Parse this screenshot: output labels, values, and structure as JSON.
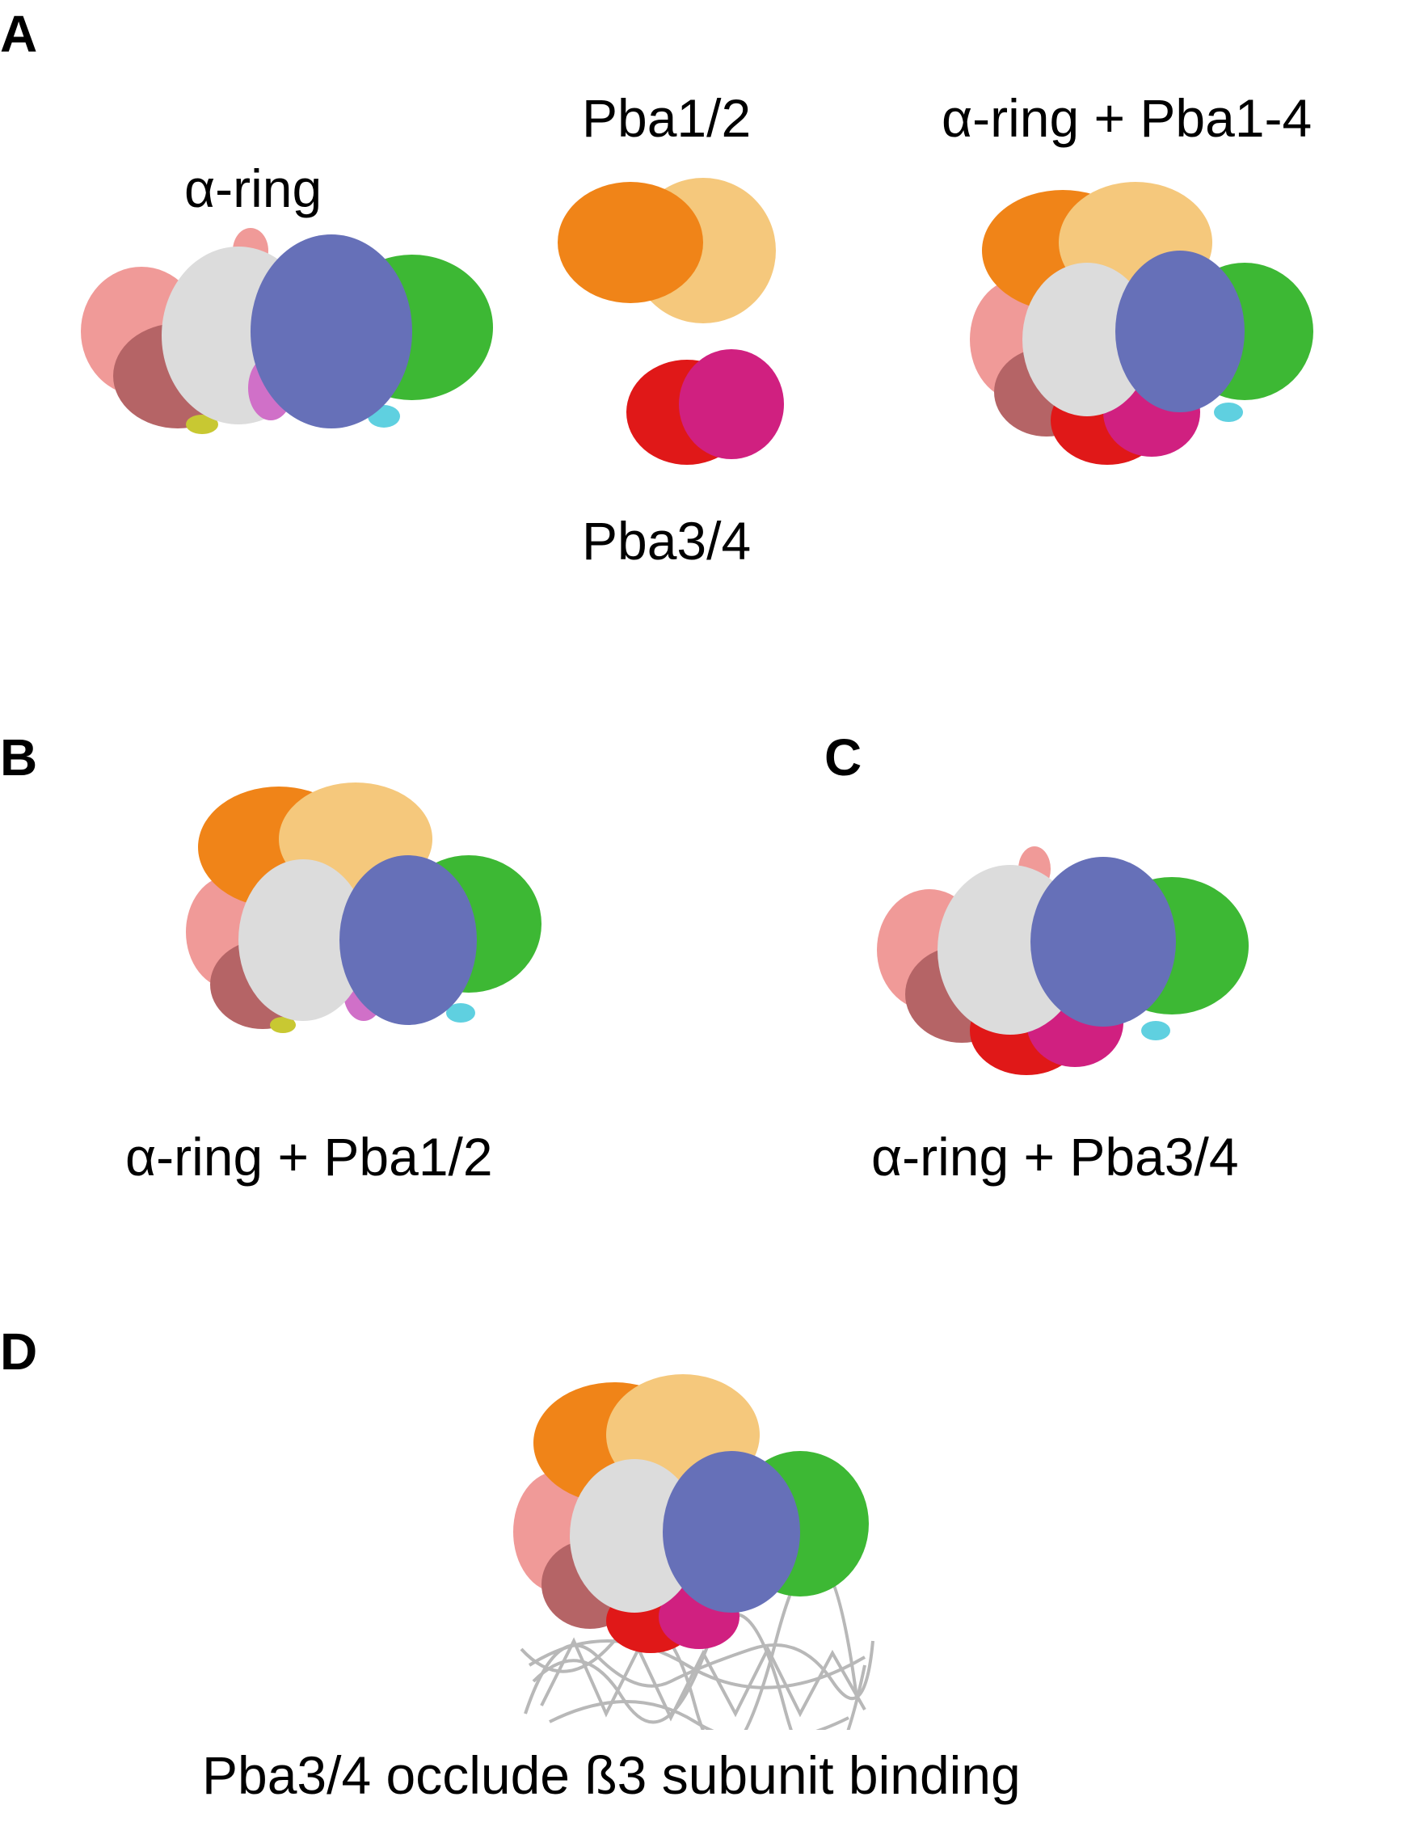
{
  "panels": {
    "A": {
      "letter": "A",
      "labels": {
        "alpha_ring": "α-ring",
        "pba12": "Pba1/2",
        "pba34": "Pba3/4",
        "complex": "α-ring + Pba1-4"
      }
    },
    "B": {
      "letter": "B",
      "caption": "α-ring + Pba1/2"
    },
    "C": {
      "letter": "C",
      "caption": "α-ring + Pba3/4"
    },
    "D": {
      "letter": "D",
      "caption": "Pba3/4 occlude ß3 subunit binding"
    }
  },
  "colors": {
    "salmon": "#f09a98",
    "brown": "#b56466",
    "white": "#dcdcdc",
    "blue": "#6670b8",
    "green": "#3db834",
    "cyan": "#5fd0e0",
    "magenta_light": "#d070c8",
    "yellow": "#c8c832",
    "orange": "#f08418",
    "wheat": "#f5c87c",
    "red": "#e01818",
    "hotpink": "#d02080",
    "ribbon_gray": "#c8c8c8"
  }
}
